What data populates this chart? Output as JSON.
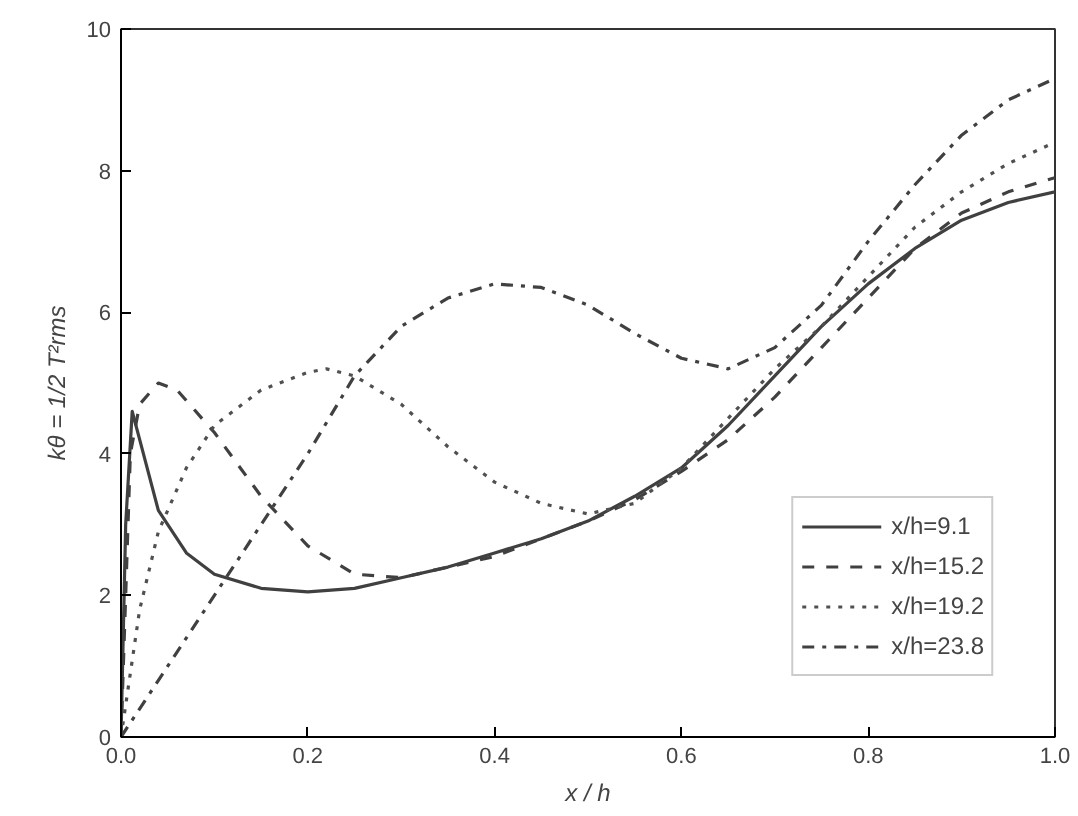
{
  "chart_data": {
    "type": "line",
    "xlabel": "x / h",
    "ylabel": "kθ = 1/2 T²rms",
    "xlim": [
      0,
      1
    ],
    "ylim": [
      0,
      10
    ],
    "xticks": [
      {
        "value": 0,
        "label": "0.0"
      },
      0.2,
      0.4,
      0.6,
      0.8,
      {
        "value": 1,
        "label": "1.0"
      }
    ],
    "yticks": [
      0,
      2,
      4,
      6,
      8,
      10
    ],
    "grid": false,
    "legend": "bottom right",
    "marker": "none",
    "series": [
      {
        "name": "x/h=9.1",
        "color": "#404040",
        "line_style": "solid",
        "x": [
          0,
          0.005,
          0.012,
          0.02,
          0.04,
          0.07,
          0.1,
          0.15,
          0.2,
          0.25,
          0.3,
          0.35,
          0.4,
          0.45,
          0.5,
          0.55,
          0.6,
          0.65,
          0.7,
          0.75,
          0.8,
          0.85,
          0.9,
          0.95,
          1.0
        ],
        "values": [
          0,
          3,
          4.6,
          4.2,
          3.2,
          2.6,
          2.3,
          2.1,
          2.05,
          2.1,
          2.25,
          2.4,
          2.6,
          2.8,
          3.05,
          3.4,
          3.8,
          4.4,
          5.1,
          5.8,
          6.4,
          6.9,
          7.3,
          7.55,
          7.7
        ]
      },
      {
        "name": "x/h=15.2",
        "color": "#404040",
        "line_style": "dashed",
        "x": [
          0,
          0.01,
          0.02,
          0.04,
          0.06,
          0.1,
          0.15,
          0.2,
          0.25,
          0.3,
          0.35,
          0.4,
          0.45,
          0.5,
          0.55,
          0.6,
          0.65,
          0.7,
          0.75,
          0.8,
          0.85,
          0.9,
          0.95,
          1.0
        ],
        "values": [
          0,
          4.0,
          4.7,
          5.0,
          4.9,
          4.3,
          3.4,
          2.7,
          2.3,
          2.25,
          2.4,
          2.55,
          2.8,
          3.05,
          3.35,
          3.75,
          4.2,
          4.8,
          5.5,
          6.2,
          6.9,
          7.4,
          7.7,
          7.9
        ]
      },
      {
        "name": "x/h=19.2",
        "color": "#505050",
        "line_style": "dotted",
        "x": [
          0,
          0.02,
          0.04,
          0.07,
          0.1,
          0.15,
          0.2,
          0.22,
          0.25,
          0.3,
          0.35,
          0.4,
          0.45,
          0.5,
          0.55,
          0.6,
          0.65,
          0.7,
          0.75,
          0.8,
          0.85,
          0.9,
          0.95,
          1.0
        ],
        "values": [
          0,
          1.8,
          2.9,
          3.8,
          4.4,
          4.9,
          5.15,
          5.2,
          5.1,
          4.7,
          4.1,
          3.6,
          3.3,
          3.15,
          3.3,
          3.8,
          4.5,
          5.2,
          5.8,
          6.5,
          7.2,
          7.7,
          8.1,
          8.4
        ]
      },
      {
        "name": "x/h=23.8",
        "color": "#404040",
        "line_style": "dashdot",
        "x": [
          0,
          0.05,
          0.1,
          0.15,
          0.2,
          0.25,
          0.3,
          0.35,
          0.4,
          0.45,
          0.5,
          0.55,
          0.6,
          0.65,
          0.7,
          0.75,
          0.8,
          0.85,
          0.9,
          0.95,
          1.0
        ],
        "values": [
          0,
          1.0,
          2.0,
          3.0,
          4.0,
          5.1,
          5.8,
          6.2,
          6.4,
          6.35,
          6.1,
          5.7,
          5.35,
          5.2,
          5.5,
          6.1,
          7.0,
          7.8,
          8.5,
          9.0,
          9.3
        ]
      }
    ]
  }
}
